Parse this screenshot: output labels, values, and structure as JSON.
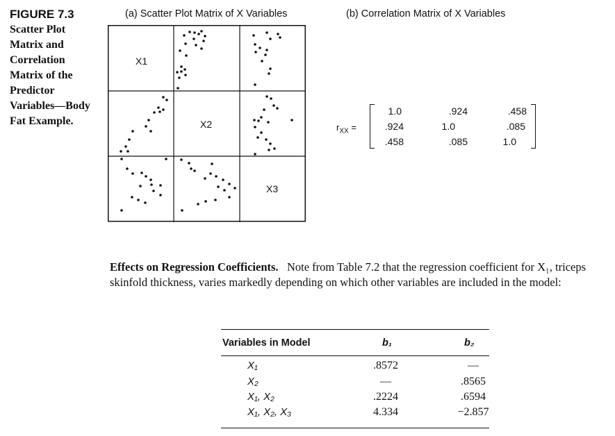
{
  "figure": {
    "label": "FIGURE 7.3",
    "title": "Scatter Plot Matrix and Correlation Matrix of the Predictor Variables—Body Fat Example."
  },
  "panel_a": {
    "title": "(a) Scatter Plot Matrix of X Variables",
    "diagonal_labels": [
      "X1",
      "X2",
      "X3"
    ]
  },
  "panel_b": {
    "title": "(b) Correlation Matrix of X Variables",
    "symbol": "r",
    "symbol_sub": "XX",
    "equals": "=",
    "rows": [
      [
        "1.0",
        ".924",
        ".458"
      ],
      [
        ".924",
        "1.0",
        ".085"
      ],
      [
        ".458",
        ".085",
        "1.0"
      ]
    ]
  },
  "body": {
    "heading": "Effects on Regression Coefficients.",
    "text": "Note from Table 7.2 that the regression coefficient for X₁, triceps skinfold thickness, varies markedly depending on which other variables are included in the model:"
  },
  "table": {
    "headers": [
      "Variables in Model",
      "b₁",
      "b₂"
    ],
    "rows": [
      {
        "vars": "X₁",
        "b1": ".8572",
        "b2": "—"
      },
      {
        "vars": "X₂",
        "b1": "—",
        "b2": ".8565"
      },
      {
        "vars": "X₁, X₂",
        "b1": ".2224",
        "b2": ".6594"
      },
      {
        "vars": "X₁, X₂, X₃",
        "b1": "4.334",
        "b2": "−2.857"
      }
    ]
  }
}
